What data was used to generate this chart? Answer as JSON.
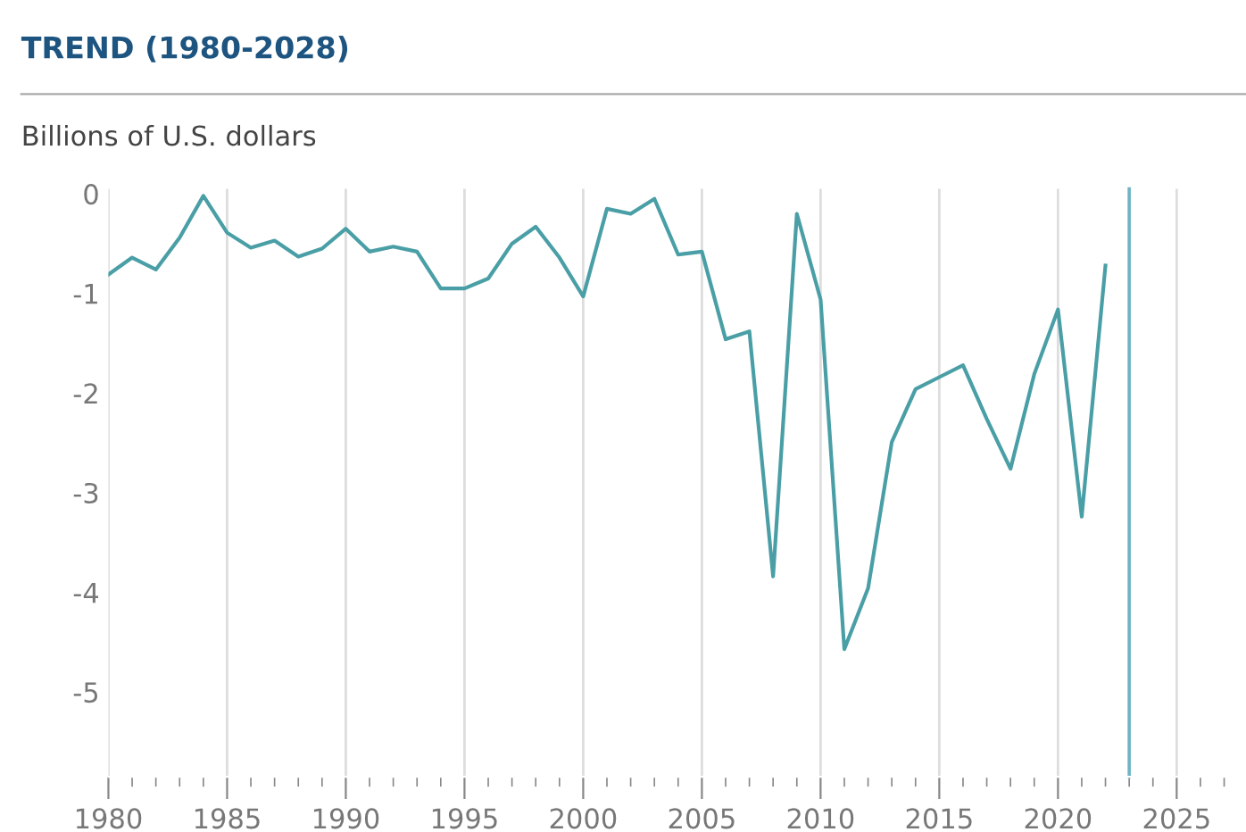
{
  "chart_data": {
    "type": "line",
    "title": "TREND (1980-2028)",
    "ylabel": "Billions of U.S. dollars",
    "x": [
      1980,
      1981,
      1982,
      1983,
      1984,
      1985,
      1986,
      1987,
      1988,
      1989,
      1990,
      1991,
      1992,
      1993,
      1994,
      1995,
      1996,
      1997,
      1998,
      1999,
      2000,
      2001,
      2002,
      2003,
      2004,
      2005,
      2006,
      2007,
      2008,
      2009,
      2010,
      2011,
      2012,
      2013,
      2014,
      2015,
      2016,
      2017,
      2018,
      2019,
      2020,
      2021,
      2022
    ],
    "series": [
      {
        "color": "#4a9fa6",
        "values": [
          -0.81,
          -0.64,
          -0.76,
          -0.44,
          -0.02,
          -0.39,
          -0.54,
          -0.47,
          -0.63,
          -0.55,
          -0.35,
          -0.58,
          -0.53,
          -0.58,
          -0.95,
          -0.95,
          -0.85,
          -0.5,
          -0.33,
          -0.64,
          -1.03,
          -0.15,
          -0.2,
          -0.05,
          -0.61,
          -0.58,
          -1.46,
          -1.38,
          -3.84,
          -0.2,
          -1.06,
          -4.57,
          -3.96,
          -2.49,
          -1.96,
          -1.84,
          -1.72,
          -2.26,
          -2.76,
          -1.81,
          -1.16,
          -3.24,
          -0.72
        ]
      }
    ],
    "xlim": [
      1980,
      2027.5
    ],
    "xticks": [
      1980,
      1985,
      1990,
      1995,
      2000,
      2005,
      2010,
      2015,
      2020,
      2025
    ],
    "ylim": [
      -5.85,
      0.05
    ],
    "yticks": [
      0,
      {
        "value": -1,
        "label": "-1"
      },
      {
        "value": -2,
        "label": "-2"
      },
      {
        "value": -3,
        "label": "-3"
      },
      {
        "value": -4,
        "label": "-4"
      },
      {
        "value": -5,
        "label": "-5"
      }
    ],
    "ref_lines": [
      {
        "axis": "x",
        "value": 2023,
        "color": "#6fb3c4"
      }
    ],
    "grid": "x",
    "legend": false,
    "marker": "none",
    "line_style": "solid"
  }
}
